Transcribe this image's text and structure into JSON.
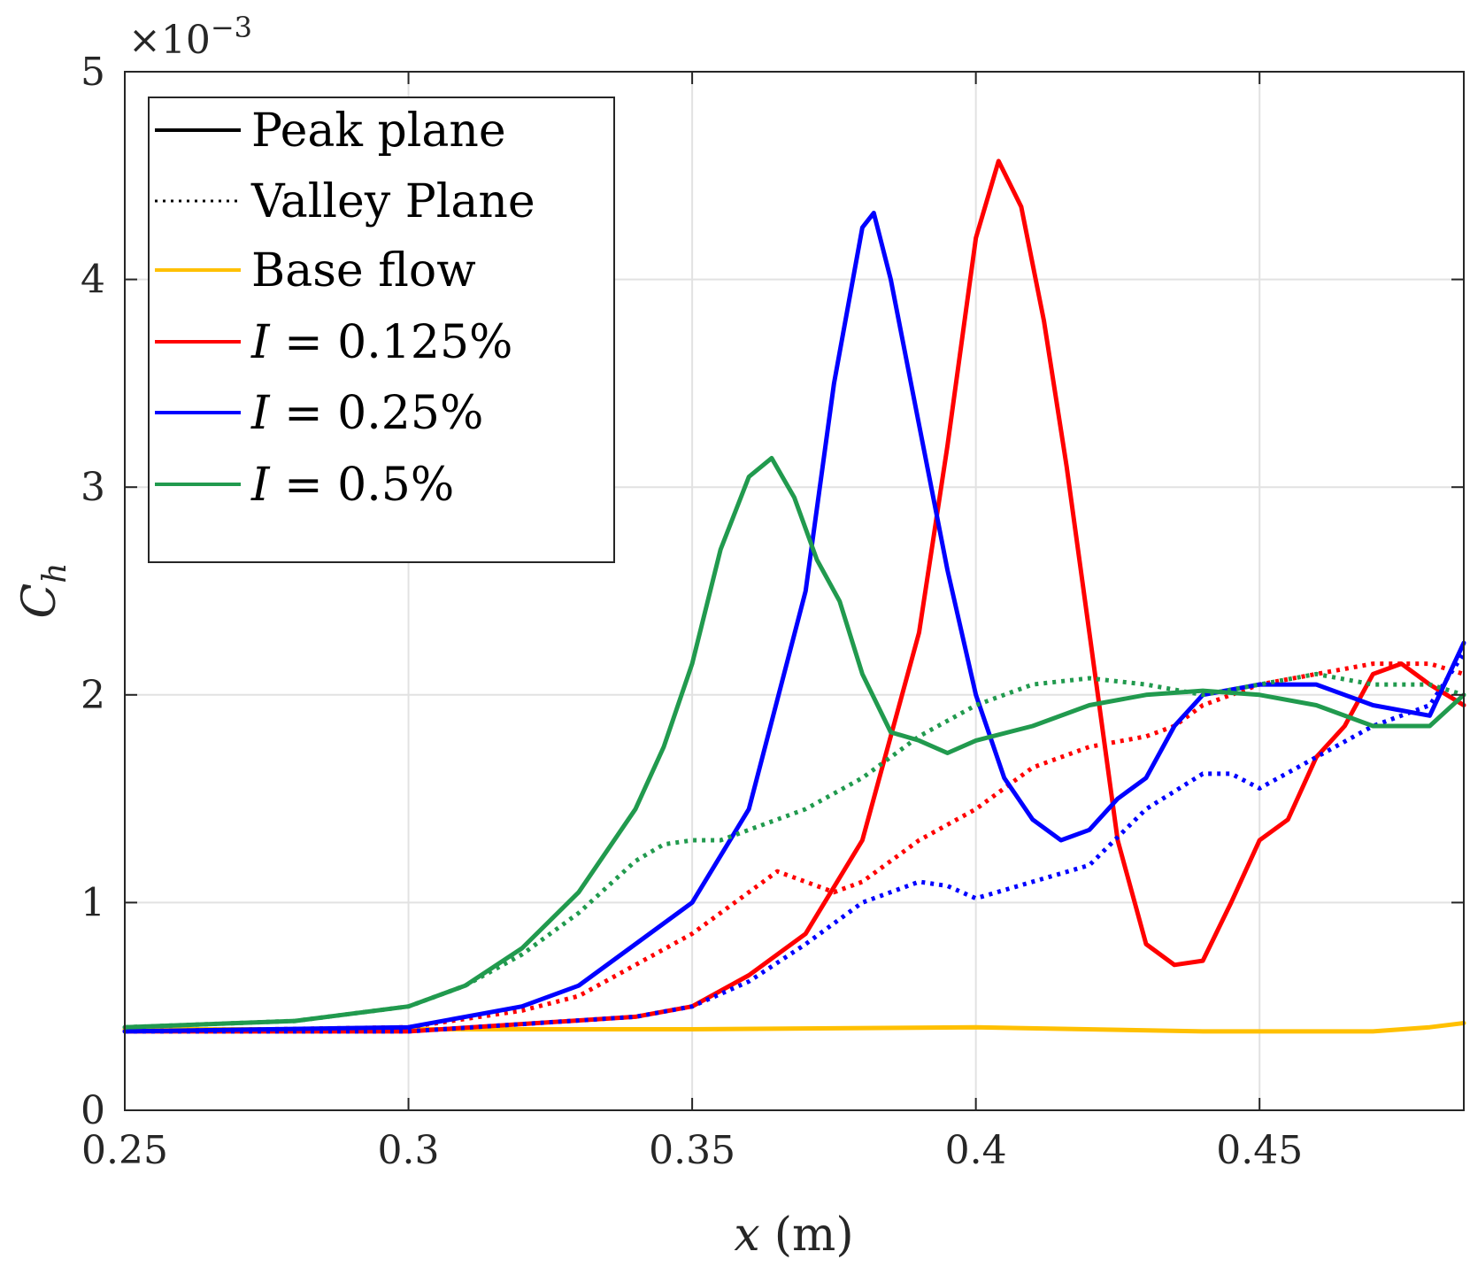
{
  "chart_data": {
    "type": "line",
    "multiplier_label": "×10",
    "multiplier_exponent": "−3",
    "xlabel": {
      "var": "x",
      "unit": "(m)"
    },
    "ylabel": {
      "base": "C",
      "sub": "h"
    },
    "xlim": [
      0.25,
      0.486
    ],
    "ylim": [
      0,
      5
    ],
    "xticks": [
      0.25,
      0.3,
      0.35,
      0.4,
      0.45
    ],
    "xtick_labels": [
      "0.25",
      "0.3",
      "0.35",
      "0.4",
      "0.45"
    ],
    "yticks": [
      0,
      1,
      2,
      3,
      4,
      5
    ],
    "ytick_labels": [
      "0",
      "1",
      "2",
      "3",
      "4",
      "5"
    ],
    "grid": true,
    "legend_position": "top-left",
    "legend": [
      {
        "label": "Peak plane",
        "color": "#000000",
        "style": "solid"
      },
      {
        "label": "Valley Plane",
        "color": "#000000",
        "style": "dotted"
      },
      {
        "label": "Base flow",
        "color": "#FFC000",
        "style": "solid"
      },
      {
        "label": "I = 0.125%",
        "var": "I",
        "rest": " = 0.125%",
        "color": "#FF0000",
        "style": "solid"
      },
      {
        "label": "I = 0.25%",
        "var": "I",
        "rest": " = 0.25%",
        "color": "#0000FF",
        "style": "solid"
      },
      {
        "label": "I = 0.5%",
        "var": "I",
        "rest": " = 0.5%",
        "color": "#219A4E",
        "style": "solid"
      }
    ],
    "series": [
      {
        "name": "Base flow",
        "color": "#FFC000",
        "style": "solid",
        "x": [
          0.25,
          0.3,
          0.35,
          0.4,
          0.44,
          0.46,
          0.47,
          0.48,
          0.486
        ],
        "y": [
          0.39,
          0.39,
          0.39,
          0.4,
          0.38,
          0.38,
          0.38,
          0.4,
          0.42
        ]
      },
      {
        "name": "I = 0.125% peak",
        "color": "#FF0000",
        "style": "solid",
        "x": [
          0.25,
          0.3,
          0.34,
          0.35,
          0.36,
          0.37,
          0.38,
          0.39,
          0.395,
          0.4,
          0.404,
          0.408,
          0.412,
          0.416,
          0.42,
          0.425,
          0.43,
          0.435,
          0.44,
          0.445,
          0.45,
          0.455,
          0.46,
          0.465,
          0.47,
          0.475,
          0.48,
          0.486
        ],
        "y": [
          0.38,
          0.38,
          0.45,
          0.5,
          0.65,
          0.85,
          1.3,
          2.3,
          3.2,
          4.2,
          4.57,
          4.35,
          3.8,
          3.1,
          2.3,
          1.3,
          0.8,
          0.7,
          0.72,
          1.0,
          1.3,
          1.4,
          1.7,
          1.85,
          2.1,
          2.15,
          2.05,
          1.95
        ]
      },
      {
        "name": "I = 0.125% valley",
        "color": "#FF0000",
        "style": "dotted",
        "x": [
          0.25,
          0.3,
          0.32,
          0.33,
          0.34,
          0.35,
          0.36,
          0.365,
          0.37,
          0.375,
          0.38,
          0.39,
          0.4,
          0.41,
          0.42,
          0.43,
          0.435,
          0.44,
          0.45,
          0.46,
          0.47,
          0.48,
          0.486
        ],
        "y": [
          0.38,
          0.4,
          0.48,
          0.55,
          0.7,
          0.85,
          1.05,
          1.15,
          1.1,
          1.05,
          1.1,
          1.3,
          1.45,
          1.65,
          1.75,
          1.8,
          1.85,
          1.95,
          2.05,
          2.1,
          2.15,
          2.15,
          2.1
        ]
      },
      {
        "name": "I = 0.25% peak",
        "color": "#0000FF",
        "style": "solid",
        "x": [
          0.25,
          0.3,
          0.32,
          0.33,
          0.34,
          0.35,
          0.36,
          0.37,
          0.375,
          0.38,
          0.382,
          0.385,
          0.39,
          0.395,
          0.4,
          0.405,
          0.41,
          0.415,
          0.42,
          0.425,
          0.43,
          0.435,
          0.44,
          0.45,
          0.46,
          0.47,
          0.48,
          0.486
        ],
        "y": [
          0.38,
          0.4,
          0.5,
          0.6,
          0.8,
          1.0,
          1.45,
          2.5,
          3.5,
          4.25,
          4.32,
          4.0,
          3.3,
          2.6,
          2.0,
          1.6,
          1.4,
          1.3,
          1.35,
          1.5,
          1.6,
          1.85,
          2.0,
          2.05,
          2.05,
          1.95,
          1.9,
          2.25
        ]
      },
      {
        "name": "I = 0.25% valley",
        "color": "#0000FF",
        "style": "dotted",
        "x": [
          0.25,
          0.3,
          0.34,
          0.35,
          0.36,
          0.37,
          0.38,
          0.39,
          0.395,
          0.4,
          0.41,
          0.42,
          0.43,
          0.44,
          0.445,
          0.45,
          0.46,
          0.47,
          0.48,
          0.486
        ],
        "y": [
          0.38,
          0.38,
          0.45,
          0.5,
          0.62,
          0.8,
          1.0,
          1.1,
          1.08,
          1.02,
          1.1,
          1.18,
          1.45,
          1.62,
          1.62,
          1.55,
          1.7,
          1.85,
          1.95,
          2.2
        ]
      },
      {
        "name": "I = 0.5% peak",
        "color": "#219A4E",
        "style": "solid",
        "x": [
          0.25,
          0.28,
          0.3,
          0.31,
          0.32,
          0.33,
          0.34,
          0.345,
          0.35,
          0.355,
          0.36,
          0.364,
          0.368,
          0.372,
          0.376,
          0.38,
          0.385,
          0.39,
          0.395,
          0.4,
          0.41,
          0.42,
          0.43,
          0.44,
          0.45,
          0.46,
          0.47,
          0.48,
          0.486
        ],
        "y": [
          0.4,
          0.43,
          0.5,
          0.6,
          0.78,
          1.05,
          1.45,
          1.75,
          2.15,
          2.7,
          3.05,
          3.14,
          2.95,
          2.65,
          2.45,
          2.1,
          1.82,
          1.78,
          1.72,
          1.78,
          1.85,
          1.95,
          2.0,
          2.02,
          2.0,
          1.95,
          1.85,
          1.85,
          2.0
        ]
      },
      {
        "name": "I = 0.5% valley",
        "color": "#219A4E",
        "style": "dotted",
        "x": [
          0.25,
          0.28,
          0.3,
          0.31,
          0.32,
          0.33,
          0.34,
          0.345,
          0.35,
          0.355,
          0.36,
          0.37,
          0.38,
          0.39,
          0.4,
          0.41,
          0.42,
          0.43,
          0.44,
          0.45,
          0.46,
          0.47,
          0.48,
          0.486
        ],
        "y": [
          0.4,
          0.43,
          0.5,
          0.6,
          0.75,
          0.95,
          1.2,
          1.28,
          1.3,
          1.3,
          1.35,
          1.45,
          1.6,
          1.8,
          1.95,
          2.05,
          2.08,
          2.05,
          2.0,
          2.05,
          2.1,
          2.05,
          2.05,
          2.0
        ]
      }
    ]
  }
}
